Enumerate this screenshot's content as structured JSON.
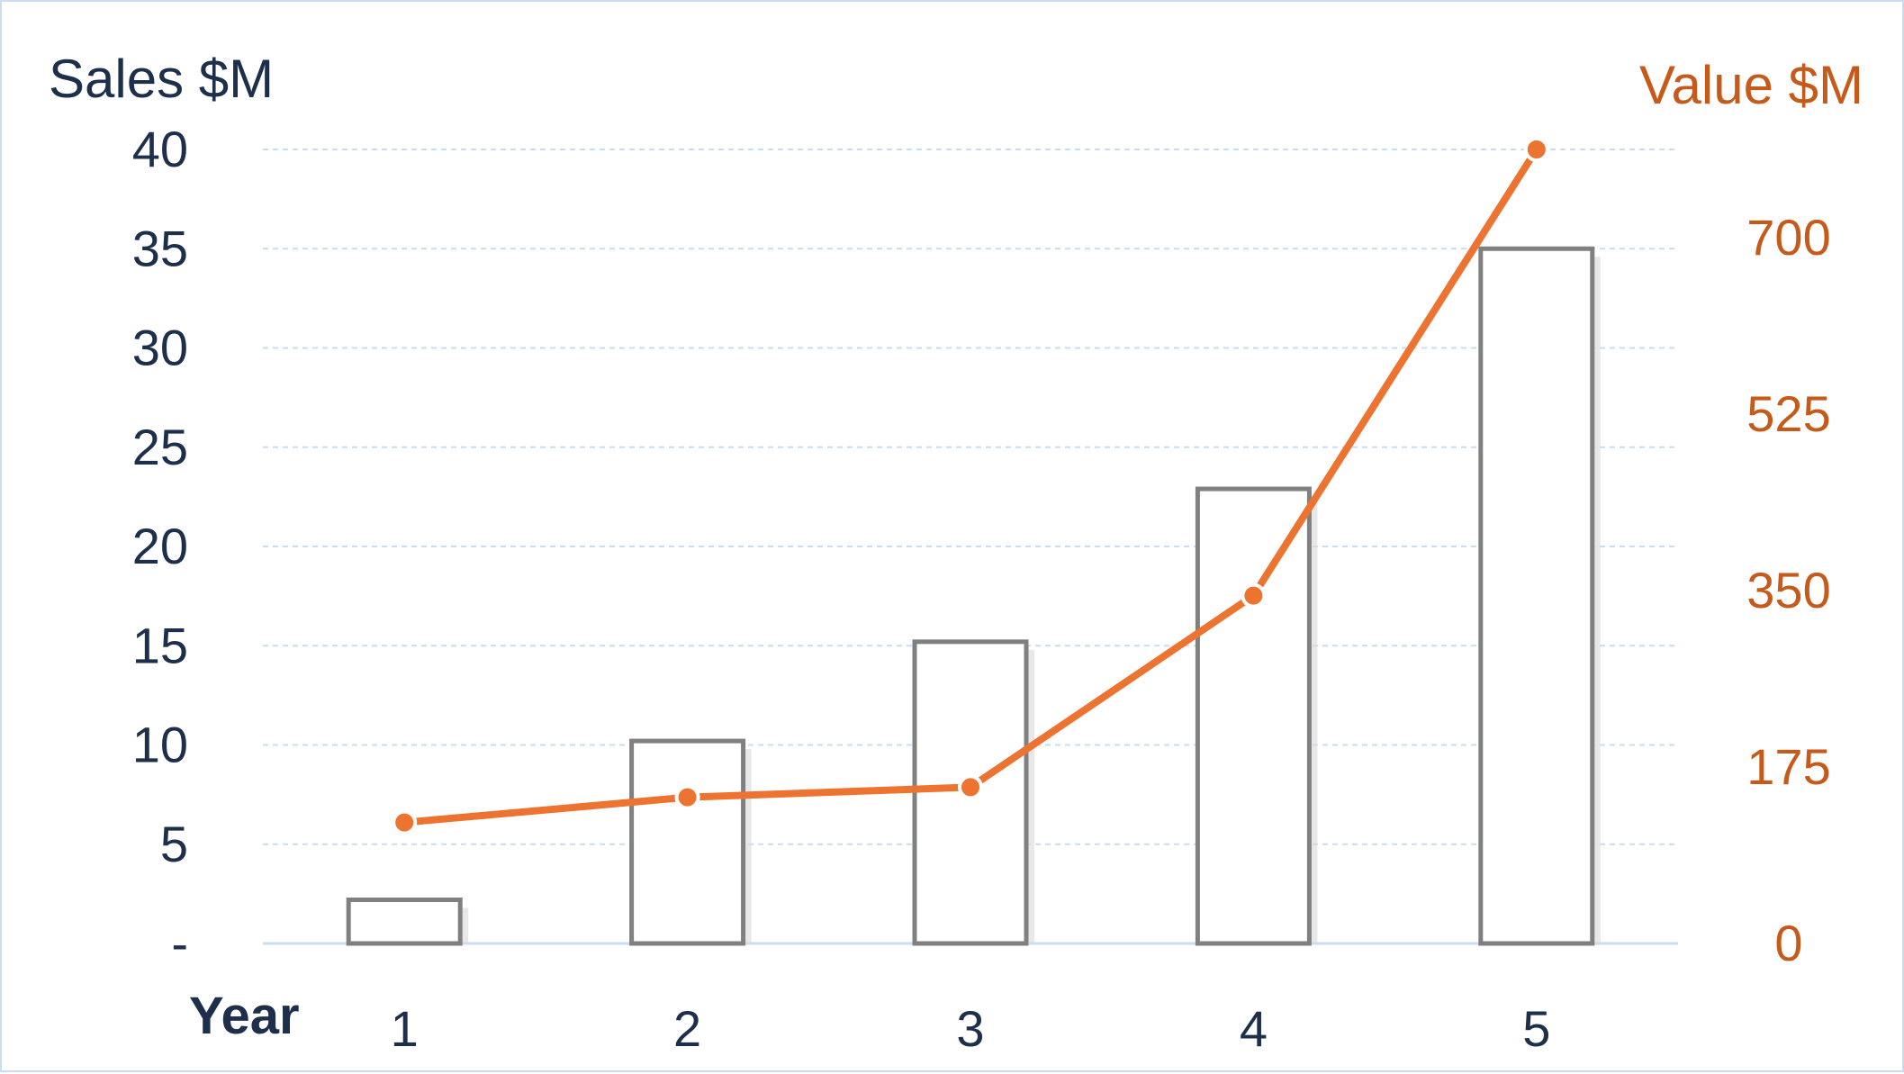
{
  "chart_data": {
    "type": "bar",
    "xlabel": "Year",
    "ylabel": "Sales $M",
    "y2label": "Value $M",
    "categories": [
      "1",
      "2",
      "3",
      "4",
      "5"
    ],
    "ylim": [
      0,
      40
    ],
    "y2lim": [
      0,
      787.5
    ],
    "yticks": [
      "-",
      "5",
      "10",
      "15",
      "20",
      "25",
      "30",
      "35",
      "40"
    ],
    "y2ticks": [
      "0",
      "175",
      "350",
      "525",
      "700"
    ],
    "grid": true,
    "series": [
      {
        "type": "bar",
        "axis": "left",
        "values": [
          2.2,
          10.2,
          15.2,
          22.9,
          35.0
        ],
        "color": "#808080"
      },
      {
        "type": "line",
        "axis": "right",
        "values": [
          120,
          145,
          155,
          345,
          787.5
        ],
        "color": "#ed7331"
      }
    ]
  }
}
